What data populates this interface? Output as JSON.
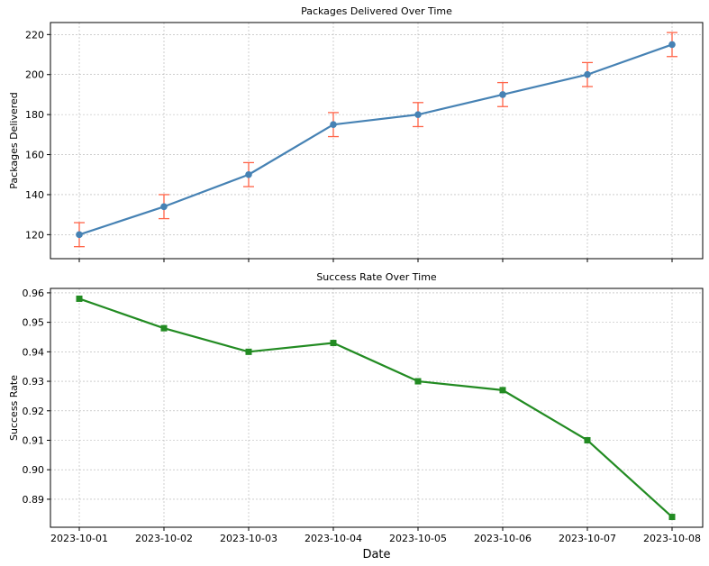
{
  "chart_data": [
    {
      "type": "line",
      "title": "Packages Delivered Over Time",
      "xlabel": "",
      "ylabel": "Packages Delivered",
      "categories": [
        "2023-10-01",
        "2023-10-02",
        "2023-10-03",
        "2023-10-04",
        "2023-10-05",
        "2023-10-06",
        "2023-10-07",
        "2023-10-08"
      ],
      "series": [
        {
          "values": [
            120,
            134,
            150,
            175,
            180,
            190,
            200,
            215
          ],
          "error": [
            6,
            6,
            6,
            6,
            6,
            6,
            6,
            6
          ],
          "color": "#4682b4",
          "error_color": "#ff6347",
          "marker": "circle"
        }
      ],
      "ylim": [
        108,
        226
      ],
      "yticks": [
        120,
        140,
        160,
        180,
        200,
        220
      ],
      "grid": true,
      "show_xtick_labels": false
    },
    {
      "type": "line",
      "title": "Success Rate Over Time",
      "xlabel": "Date",
      "ylabel": "Success Rate",
      "categories": [
        "2023-10-01",
        "2023-10-02",
        "2023-10-03",
        "2023-10-04",
        "2023-10-05",
        "2023-10-06",
        "2023-10-07",
        "2023-10-08"
      ],
      "series": [
        {
          "values": [
            0.958,
            0.948,
            0.94,
            0.943,
            0.93,
            0.927,
            0.91,
            0.884
          ],
          "color": "#228b22",
          "marker": "square"
        }
      ],
      "ylim": [
        0.8805,
        0.9615
      ],
      "yticks": [
        "0.89",
        "0.90",
        "0.91",
        "0.92",
        "0.93",
        "0.94",
        "0.95",
        "0.96"
      ],
      "grid": true,
      "show_xtick_labels": true
    }
  ]
}
